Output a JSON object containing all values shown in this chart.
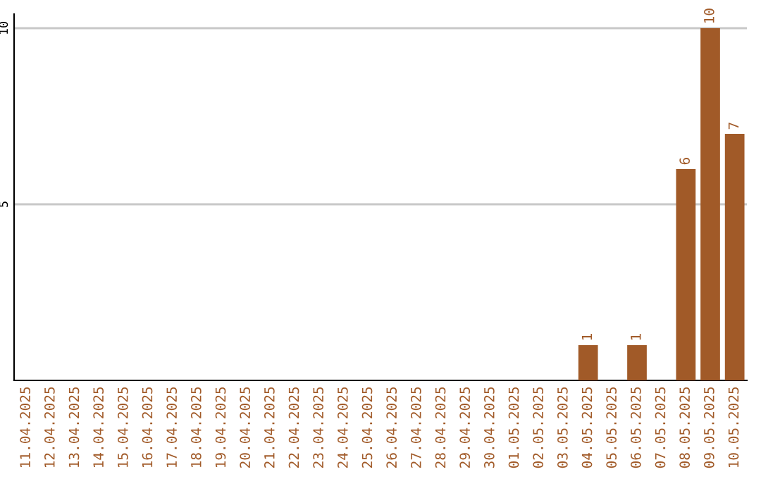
{
  "chart_data": {
    "type": "bar",
    "categories": [
      "11.04.2025",
      "12.04.2025",
      "13.04.2025",
      "14.04.2025",
      "15.04.2025",
      "16.04.2025",
      "17.04.2025",
      "18.04.2025",
      "19.04.2025",
      "20.04.2025",
      "21.04.2025",
      "22.04.2025",
      "23.04.2025",
      "24.04.2025",
      "25.04.2025",
      "26.04.2025",
      "27.04.2025",
      "28.04.2025",
      "29.04.2025",
      "30.04.2025",
      "01.05.2025",
      "02.05.2025",
      "03.05.2025",
      "04.05.2025",
      "05.05.2025",
      "06.05.2025",
      "07.05.2025",
      "08.05.2025",
      "09.05.2025",
      "10.05.2025"
    ],
    "values": [
      0,
      0,
      0,
      0,
      0,
      0,
      0,
      0,
      0,
      0,
      0,
      0,
      0,
      0,
      0,
      0,
      0,
      0,
      0,
      0,
      0,
      0,
      0,
      1,
      0,
      1,
      0,
      6,
      10,
      7
    ],
    "value_labels": [
      null,
      null,
      null,
      null,
      null,
      null,
      null,
      null,
      null,
      null,
      null,
      null,
      null,
      null,
      null,
      null,
      null,
      null,
      null,
      null,
      null,
      null,
      null,
      "1",
      null,
      "1",
      null,
      "6",
      "10",
      "7"
    ],
    "color": "#a15a28",
    "ylim": [
      0,
      10.4
    ],
    "yticks": [
      5,
      10
    ],
    "grid": "y",
    "legend": false
  }
}
